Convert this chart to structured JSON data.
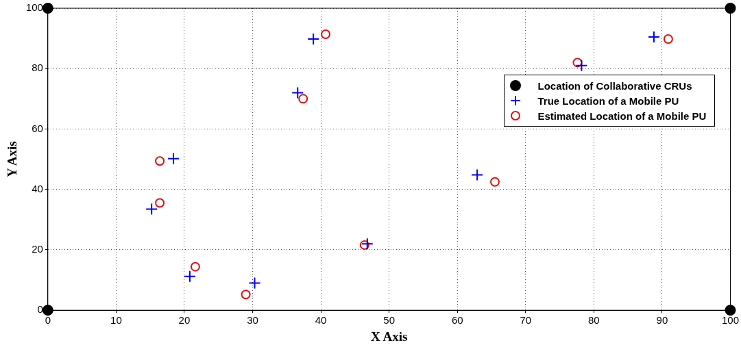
{
  "chart_data": {
    "type": "scatter",
    "xlabel": "X Axis",
    "ylabel": "Y Axis",
    "xlim": [
      0,
      100
    ],
    "ylim": [
      0,
      100
    ],
    "xticks": [
      0,
      10,
      20,
      30,
      40,
      50,
      60,
      70,
      80,
      90,
      100
    ],
    "yticks": [
      0,
      20,
      40,
      60,
      80,
      100
    ],
    "grid": true,
    "legend": "top right",
    "series": [
      {
        "name": "Location of Collaborative CRUs",
        "color": "#000000",
        "marker": "circle",
        "x": [
          0,
          0,
          100,
          100
        ],
        "values": [
          0,
          100,
          0,
          100
        ]
      },
      {
        "name": "True Location of a Mobile PU",
        "color": "#0000ff",
        "marker": "cross",
        "x": [
          15.2,
          18.4,
          20.8,
          30.3,
          36.6,
          38.9,
          46.8,
          62.9,
          78.2,
          88.8
        ],
        "values": [
          33.5,
          50.2,
          11.2,
          9,
          72,
          89.8,
          22,
          44.8,
          81,
          90.5
        ]
      },
      {
        "name": "Estimated Location of a Mobile PU",
        "color": "#dd1111",
        "marker": "circle-open",
        "x": [
          16.4,
          16.4,
          21.6,
          29,
          37.4,
          40.7,
          46.4,
          65.5,
          77.6,
          90.9
        ],
        "values": [
          35.5,
          49.4,
          14.4,
          5.2,
          70,
          91.4,
          21.6,
          42.5,
          82,
          89.8
        ]
      }
    ]
  }
}
